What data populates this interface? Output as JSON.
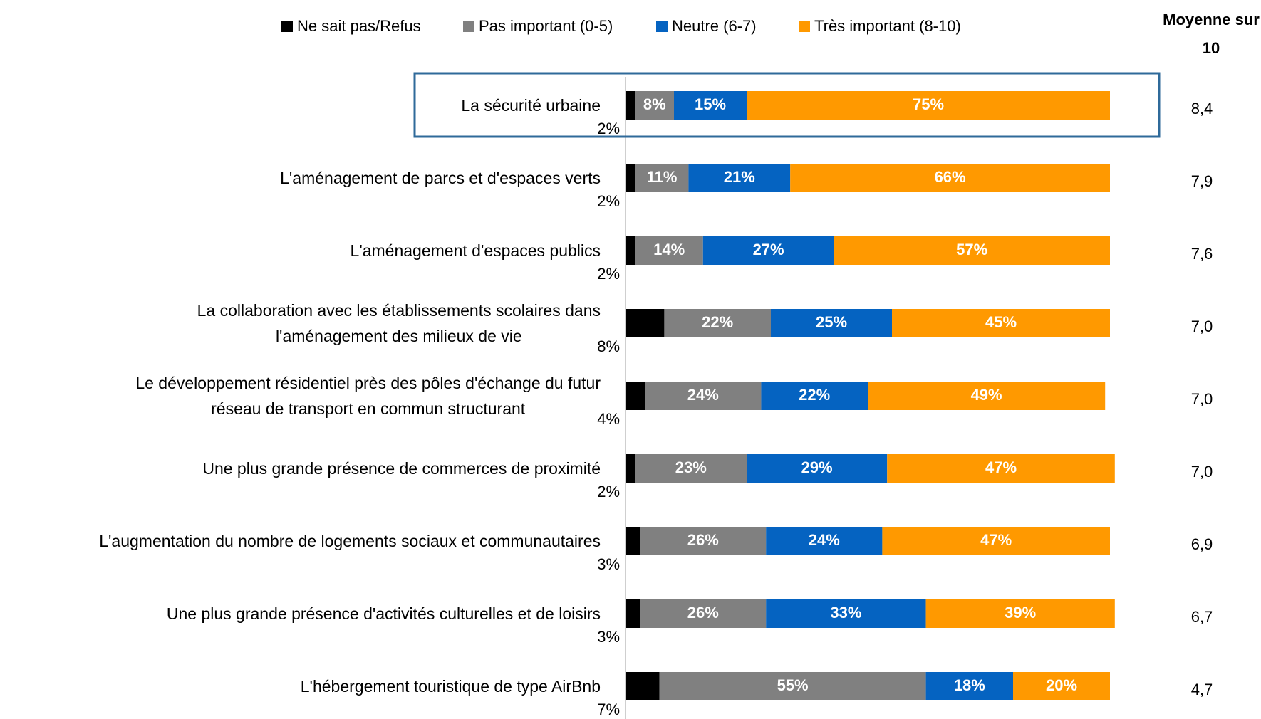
{
  "chart_data": {
    "type": "stacked-bar-horizontal",
    "categories": [
      "La sécurité urbaine",
      "L'aménagement de parcs et d'espaces verts",
      "L'aménagement d'espaces publics",
      "La collaboration avec les établissements scolaires dans\nl'aménagement des milieux de vie",
      "Le développement résidentiel près des pôles d'échange du futur\nréseau de transport en commun structurant",
      "Une plus grande présence de commerces de proximité",
      "L'augmentation du nombre de logements sociaux et communautaires",
      "Une plus grande présence d'activités culturelles et de loisirs",
      "L'hébergement touristique de type AirBnb"
    ],
    "series": [
      {
        "name": "Ne sait pas/Refus",
        "color": "#000000",
        "values": [
          2,
          2,
          2,
          8,
          4,
          2,
          3,
          3,
          7
        ],
        "value_labels": [
          "2%",
          "2%",
          "2%",
          "8%",
          "4%",
          "2%",
          "3%",
          "3%",
          "7%"
        ]
      },
      {
        "name": "Pas important (0-5)",
        "color": "#808080",
        "values": [
          8,
          11,
          14,
          22,
          24,
          23,
          26,
          26,
          55
        ],
        "value_labels": [
          "8%",
          "11%",
          "14%",
          "22%",
          "24%",
          "23%",
          "26%",
          "26%",
          "55%"
        ]
      },
      {
        "name": "Neutre (6-7)",
        "color": "#0563c1",
        "values": [
          15,
          21,
          27,
          25,
          22,
          29,
          24,
          33,
          18
        ],
        "value_labels": [
          "15%",
          "21%",
          "27%",
          "25%",
          "22%",
          "29%",
          "24%",
          "33%",
          "18%"
        ]
      },
      {
        "name": "Très important (8-10)",
        "color": "#ff9900",
        "values": [
          75,
          66,
          57,
          45,
          49,
          47,
          47,
          39,
          20
        ],
        "value_labels": [
          "75%",
          "66%",
          "57%",
          "45%",
          "49%",
          "47%",
          "47%",
          "39%",
          "20%"
        ]
      }
    ],
    "average_header": "Moyenne sur 10",
    "averages": [
      8.4,
      7.9,
      7.6,
      7.0,
      7.0,
      7.0,
      6.9,
      6.7,
      4.7
    ],
    "average_labels": [
      "8,4",
      "7,9",
      "7,6",
      "7,0",
      "7,0",
      "7,0",
      "6,9",
      "6,7",
      "4,7"
    ]
  }
}
